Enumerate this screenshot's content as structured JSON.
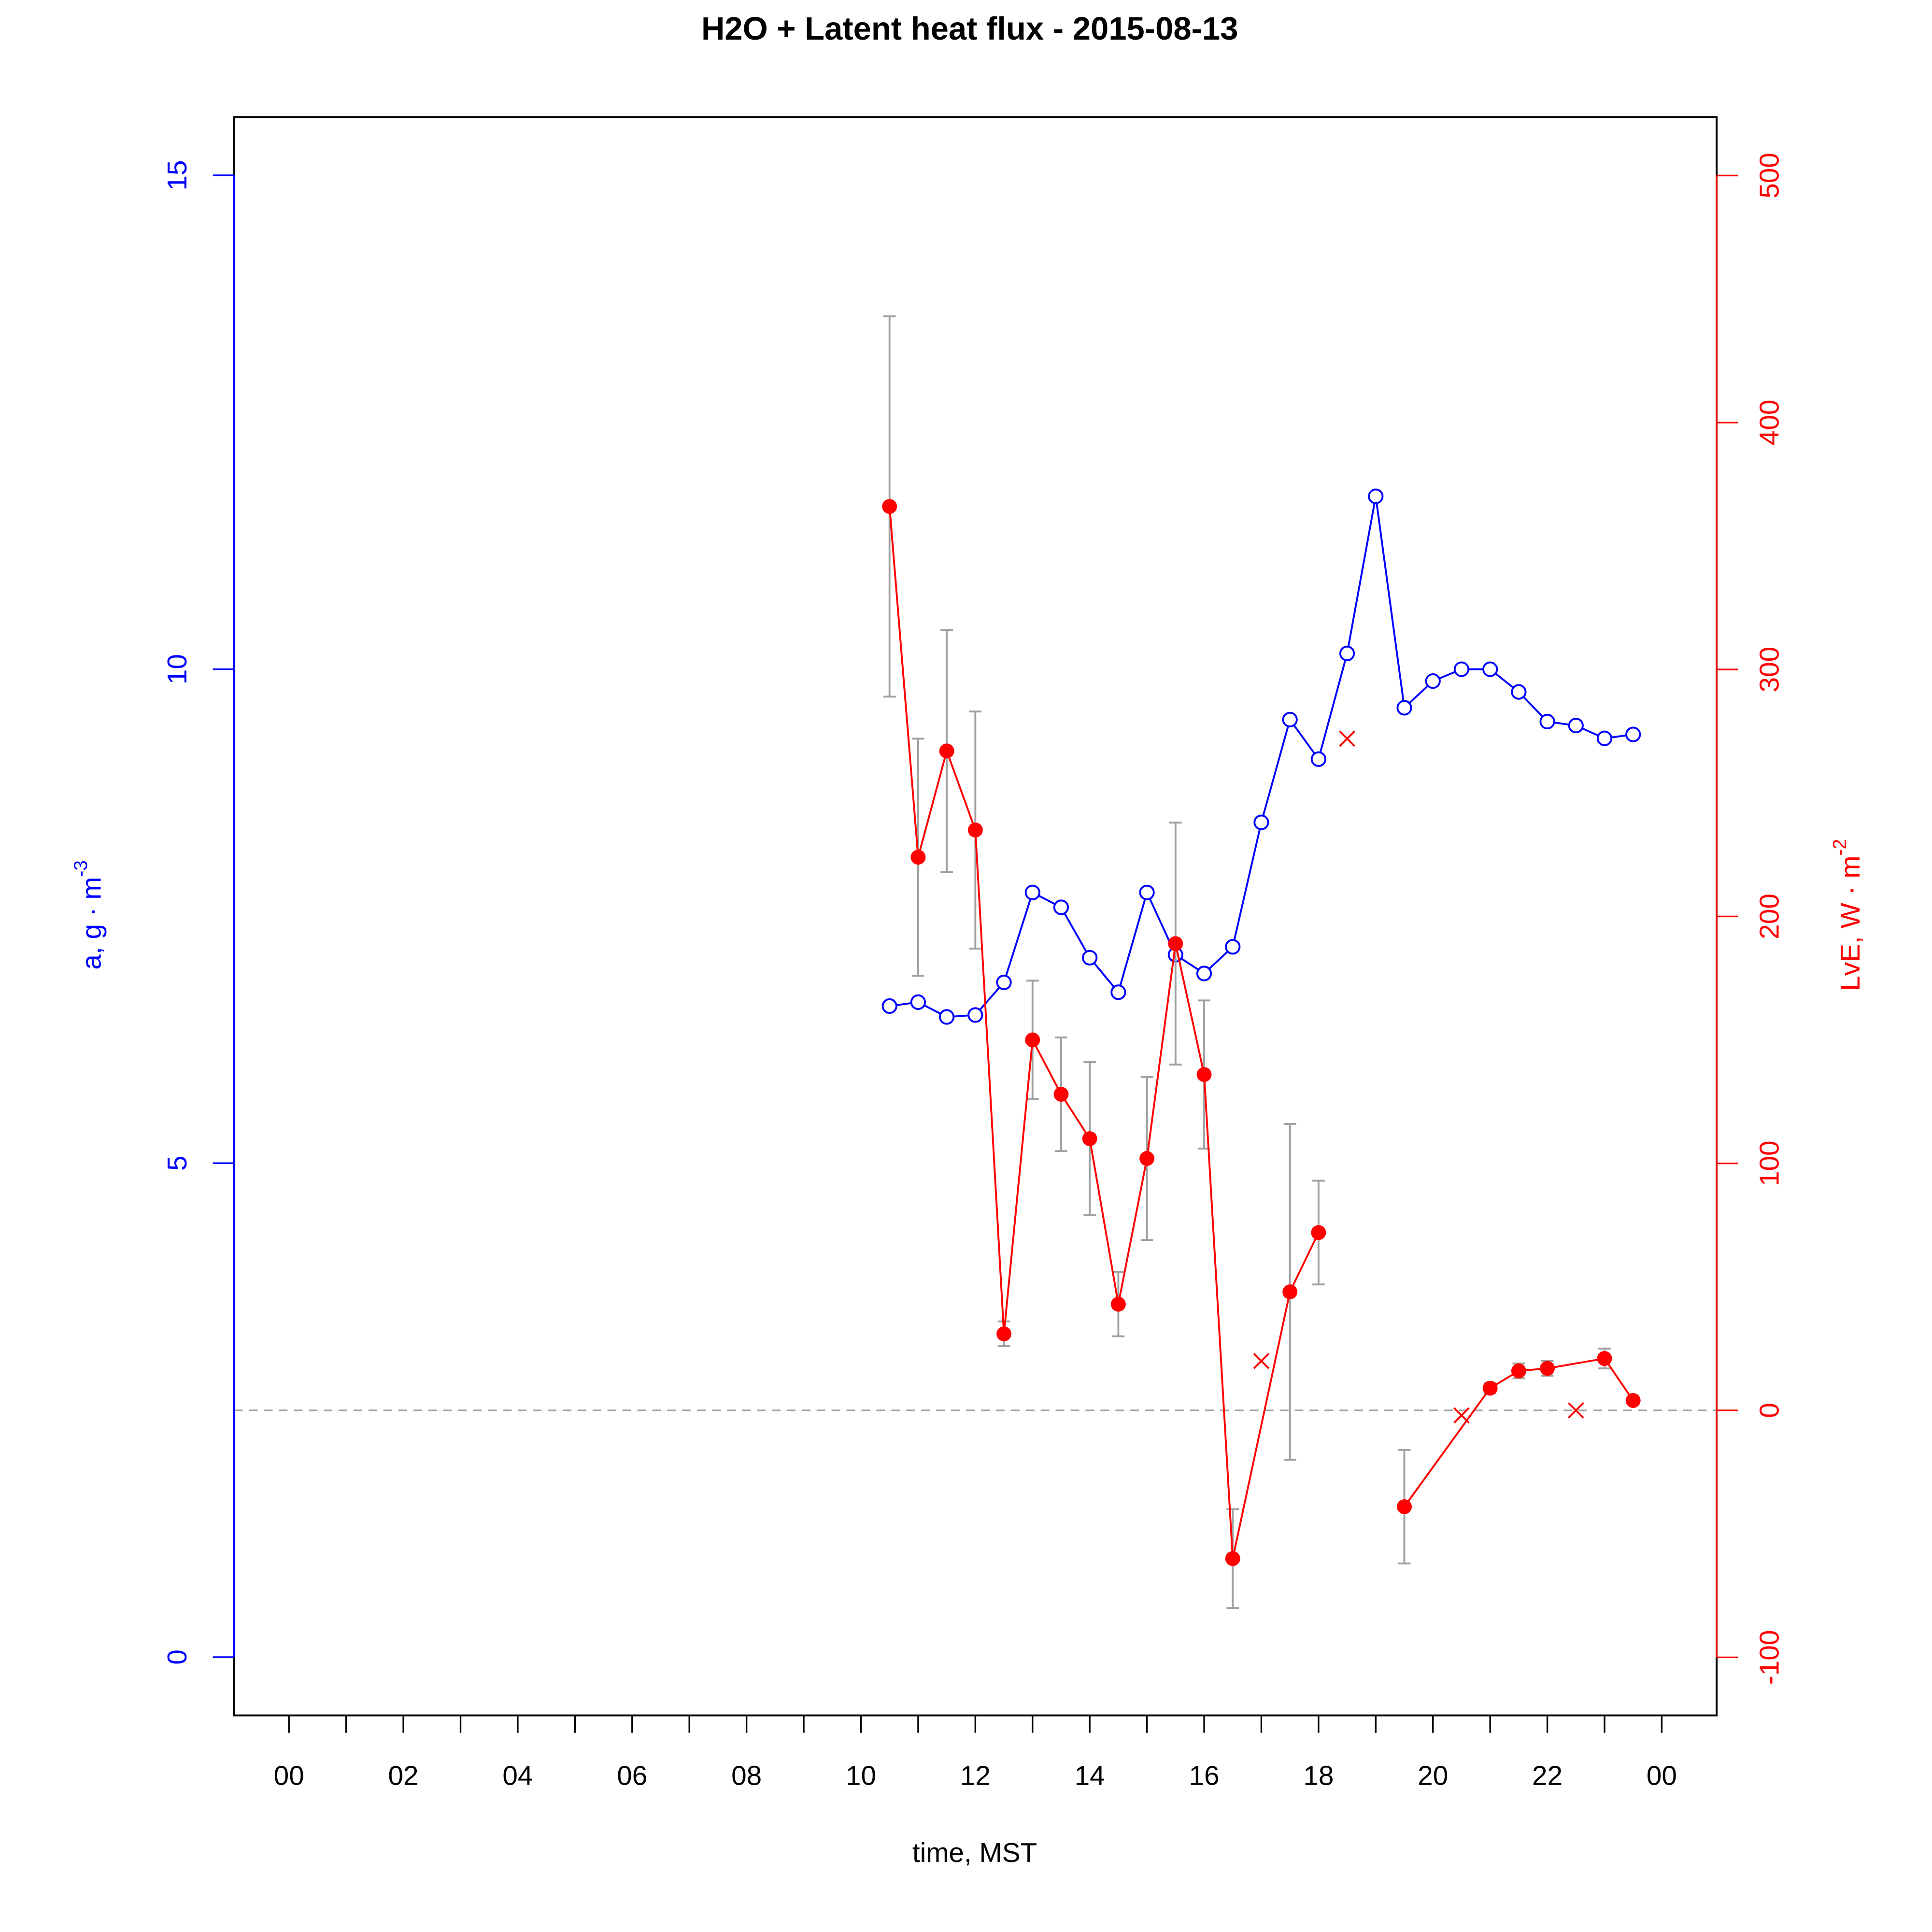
{
  "chart_data": {
    "type": "line",
    "title": "H2O + Latent heat flux -  2015-08-13",
    "xlabel": "time, MST",
    "ylabel": "a, g · m",
    "ylabel_sup": "-3",
    "y2label": "LvE, W · m",
    "y2label_sup": "-2",
    "xlim": [
      -0.96,
      24.96
    ],
    "xticks": [
      {
        "value": 0,
        "label": "00"
      },
      {
        "value": 2,
        "label": "02"
      },
      {
        "value": 4,
        "label": "04"
      },
      {
        "value": 6,
        "label": "06"
      },
      {
        "value": 8,
        "label": "08"
      },
      10,
      12,
      14,
      16,
      18,
      20,
      22,
      {
        "value": 24,
        "label": "00"
      }
    ],
    "xminorticks": [
      1,
      3,
      5,
      7,
      9,
      11,
      13,
      15,
      17,
      19,
      21,
      23
    ],
    "ylim": [
      -0.59,
      15.59
    ],
    "yticks": [
      0,
      5,
      10,
      15
    ],
    "ycolor": "#0000ff",
    "y2lim": [
      -123.5,
      523.7
    ],
    "y2ticks": [
      -100,
      0,
      100,
      200,
      300,
      400,
      500
    ],
    "y2color": "#ff0000",
    "y2_reference_line": 0,
    "error_color": "#a0a0a0",
    "series": [
      {
        "color": "#0000ff",
        "axis": "y",
        "marker": "open-circle",
        "x": [
          10.5,
          11,
          11.5,
          12,
          12.5,
          13,
          13.5,
          14,
          14.5,
          15,
          15.5,
          16,
          16.5,
          17,
          17.5,
          18,
          18.5,
          19,
          19.5,
          20,
          20.5,
          21,
          21.5,
          22,
          22.5,
          23,
          23.5
        ],
        "values": [
          6.59,
          6.63,
          6.48,
          6.5,
          6.83,
          7.74,
          7.59,
          7.08,
          6.73,
          7.74,
          7.11,
          6.92,
          7.19,
          8.45,
          9.49,
          9.09,
          10.16,
          11.75,
          9.61,
          9.88,
          10.0,
          10.0,
          9.77,
          9.47,
          9.43,
          9.3,
          9.34
        ]
      },
      {
        "color": "#ff0000",
        "axis": "y2",
        "marker": "filled-circle",
        "x": [
          10.5,
          11,
          11.5,
          12,
          12.5,
          13,
          13.5,
          14,
          14.5,
          15,
          15.5,
          16,
          16.5,
          17.5,
          18,
          19,
          19.5,
          21,
          21.5,
          22,
          23,
          23.5
        ],
        "values": [
          366,
          224,
          267,
          235,
          31,
          150,
          128,
          110,
          43,
          102,
          189,
          136,
          -60,
          48,
          72,
          null,
          -39,
          9,
          16,
          17,
          21,
          4
        ],
        "errors": [
          77,
          48,
          49,
          48,
          5,
          24,
          23,
          31,
          13,
          33,
          49,
          30,
          20,
          68,
          21,
          null,
          23,
          2,
          3,
          3,
          4,
          null
        ]
      },
      {
        "color": "#ff0000",
        "axis": "y2",
        "marker": "cross",
        "line": false,
        "x": [
          17,
          18.5,
          20.5,
          22.5
        ],
        "values": [
          20,
          272,
          -2,
          0
        ]
      }
    ]
  }
}
